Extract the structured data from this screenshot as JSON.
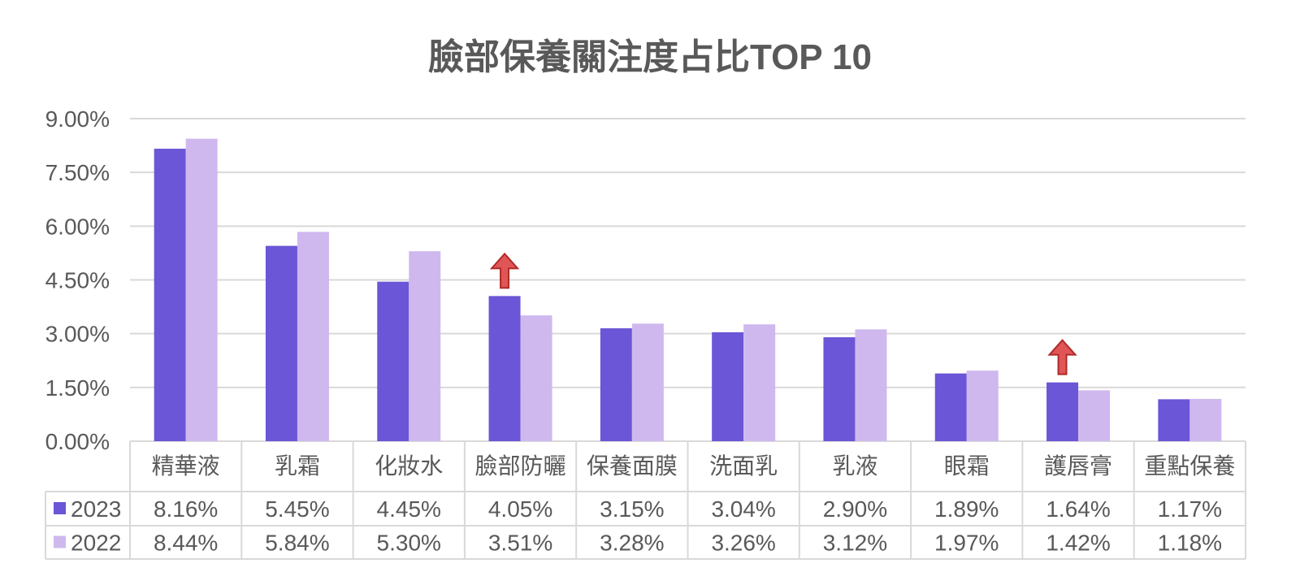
{
  "chart_data": {
    "type": "bar",
    "title": "臉部保養關注度占比TOP 10",
    "categories": [
      "精華液",
      "乳霜",
      "化妝水",
      "臉部防曬",
      "保養面膜",
      "洗面乳",
      "乳液",
      "眼霜",
      "護唇膏",
      "重點保養"
    ],
    "series": [
      {
        "name": "2023",
        "color": "#6a56d6",
        "values": [
          8.16,
          5.45,
          4.45,
          4.05,
          3.15,
          3.04,
          2.9,
          1.89,
          1.64,
          1.17
        ],
        "labels": [
          "8.16%",
          "5.45%",
          "4.45%",
          "4.05%",
          "3.15%",
          "3.04%",
          "2.90%",
          "1.89%",
          "1.64%",
          "1.17%"
        ]
      },
      {
        "name": "2022",
        "color": "#cfb8ee",
        "values": [
          8.44,
          5.84,
          5.3,
          3.51,
          3.28,
          3.26,
          3.12,
          1.97,
          1.42,
          1.18
        ],
        "labels": [
          "8.44%",
          "5.84%",
          "5.30%",
          "3.51%",
          "3.28%",
          "3.26%",
          "3.12%",
          "1.97%",
          "1.42%",
          "1.18%"
        ]
      }
    ],
    "yticks": [
      "0.00%",
      "1.50%",
      "3.00%",
      "4.50%",
      "6.00%",
      "7.50%",
      "9.00%"
    ],
    "ylim": [
      0,
      9
    ],
    "grid": true,
    "legend": "data-table",
    "annotations": [
      {
        "type": "up-arrow",
        "category": "臉部防曬",
        "color": "#e05555"
      },
      {
        "type": "up-arrow",
        "category": "護唇膏",
        "color": "#e05555"
      }
    ]
  }
}
